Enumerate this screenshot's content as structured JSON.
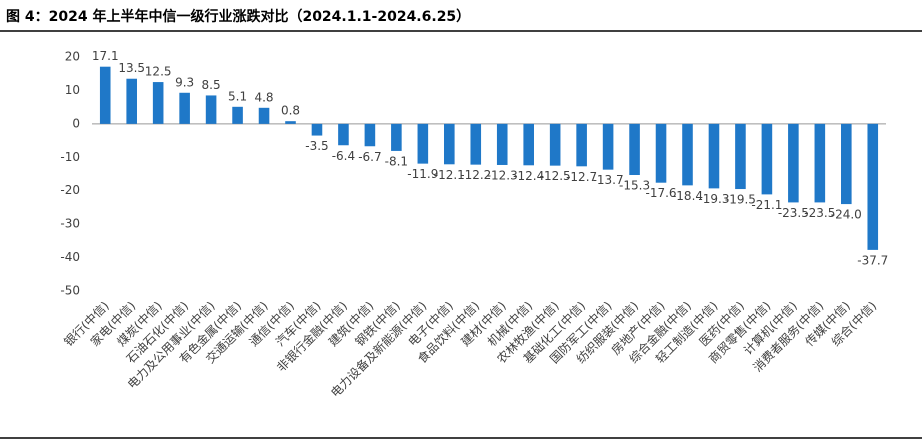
{
  "chart_data": {
    "type": "bar",
    "title": "图 4：2024 年上半年中信一级行业涨跌对比（2024.1.1-2024.6.25）",
    "categories": [
      "银行(中信)",
      "家电(中信)",
      "煤炭(中信)",
      "石油石化(中信)",
      "电力及公用事业(中信)",
      "有色金属(中信)",
      "交通运输(中信)",
      "通信(中信)",
      "汽车(中信)",
      "非银行金融(中信)",
      "建筑(中信)",
      "钢铁(中信)",
      "电力设备及新能源(中信)",
      "电子(中信)",
      "食品饮料(中信)",
      "建材(中信)",
      "机械(中信)",
      "农林牧渔(中信)",
      "基础化工(中信)",
      "国防军工(中信)",
      "纺织服装(中信)",
      "房地产(中信)",
      "综合金融(中信)",
      "轻工制造(中信)",
      "医药(中信)",
      "商贸零售(中信)",
      "计算机(中信)",
      "消费者服务(中信)",
      "传媒(中信)",
      "综合(中信)"
    ],
    "values": [
      17.1,
      13.5,
      12.5,
      9.3,
      8.5,
      5.1,
      4.8,
      0.8,
      -3.5,
      -6.4,
      -6.7,
      -8.1,
      -11.9,
      -12.1,
      -12.2,
      -12.3,
      -12.4,
      -12.5,
      -12.7,
      -13.7,
      -15.3,
      -17.6,
      -18.4,
      -19.3,
      -19.5,
      -21.1,
      -23.5,
      -23.5,
      -24.0,
      -37.7
    ],
    "value_labels": [
      "17.1",
      "13.5",
      "12.5",
      "9.3",
      "8.5",
      "5.1",
      "4.8",
      "0.8",
      "-3.5",
      "-6.4",
      "-6.7",
      "-8.1",
      "-11.9",
      "-12.1",
      "-12.2",
      "-12.3",
      "-12.4",
      "-12.5",
      "-12.7",
      "-13.7",
      "-15.3",
      "-17.6",
      "-18.4",
      "-19.3",
      "-19.5",
      "-21.1",
      "-23.5",
      "-23.5",
      "-24.0",
      "-37.7"
    ],
    "color": "#1f78c8",
    "ylim": [
      -50,
      20
    ],
    "yticks": [
      20,
      10,
      0,
      -10,
      -20,
      -30,
      -40,
      -50
    ],
    "grid": false
  }
}
